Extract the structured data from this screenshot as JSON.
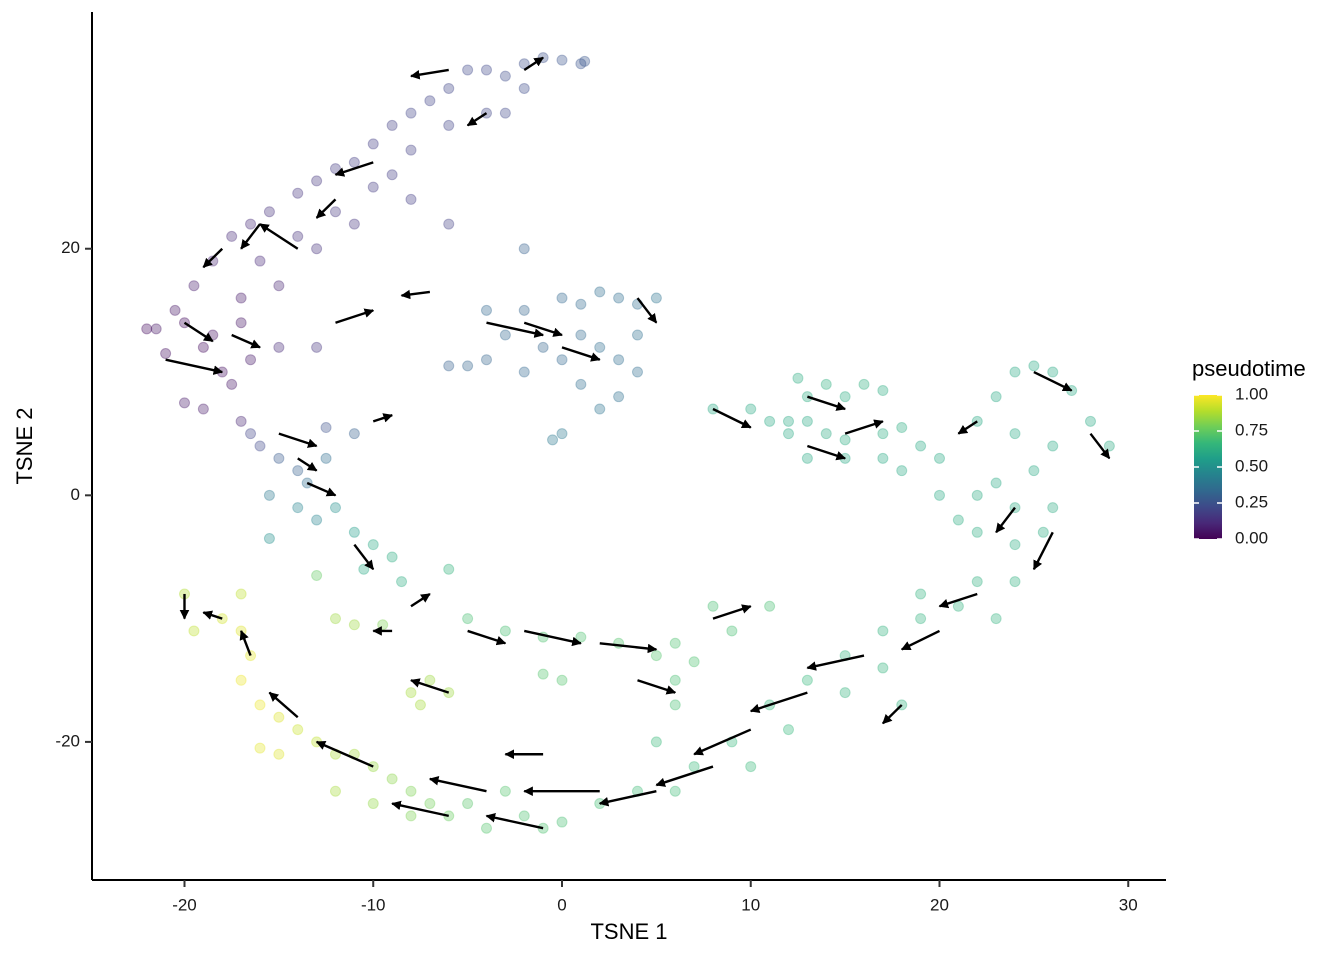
{
  "chart_data": {
    "type": "scatter",
    "xlabel": "TSNE 1",
    "ylabel": "TSNE 2",
    "xlim": [
      -24.9,
      32.0
    ],
    "ylim": [
      -31.2,
      39.2
    ],
    "xticks": [
      -20,
      -10,
      0,
      10,
      20,
      30
    ],
    "yticks": [
      -20,
      0,
      20
    ],
    "points": {
      "x": [
        -21.5,
        -20.5,
        -19.5,
        -18.5,
        -17.5,
        -16.5,
        -15.5,
        -14,
        -13,
        -12,
        -11,
        -10,
        -9,
        -8,
        -7,
        -6,
        -5,
        -4,
        -3,
        -2,
        -1,
        0,
        1,
        1.2,
        -6,
        -8,
        -10,
        -12,
        -14,
        -16,
        -15,
        -13,
        -11,
        -9,
        -4,
        -3,
        -2,
        -8,
        -6,
        -22,
        -21,
        -20,
        -19,
        -18,
        -17.5,
        -18.5,
        -17,
        -16.5,
        -19,
        -20,
        -17,
        -15,
        -13,
        -17,
        -16.5,
        -16,
        -15,
        -14,
        -13.5,
        -15.5,
        -14,
        -13,
        -12,
        -11,
        -10,
        -9,
        -8.5,
        -10.5,
        -15.5,
        -12.5,
        -11,
        -12.5,
        -2,
        0,
        1,
        2,
        3,
        4,
        5,
        1,
        2,
        3,
        4,
        0,
        -1,
        -3,
        -4,
        -2,
        1,
        3,
        2,
        0,
        -0.5,
        -2,
        -6,
        -5,
        4,
        -4,
        8,
        10,
        11,
        12.5,
        13,
        14,
        15,
        16,
        17,
        13,
        14,
        15,
        17,
        18,
        12,
        13,
        15,
        17,
        12,
        24,
        25,
        26,
        27,
        28,
        29,
        23,
        22,
        24,
        26,
        25,
        23,
        22,
        24,
        26,
        25.5,
        24,
        22,
        21,
        20,
        19,
        20,
        18,
        24,
        22,
        21,
        23,
        19,
        17,
        19,
        15,
        17,
        13,
        15,
        11,
        12,
        9,
        10,
        7,
        6,
        4,
        2,
        0,
        -1,
        -2,
        -4,
        -5,
        -3,
        18,
        5,
        -6,
        -7,
        -8,
        -9,
        -10,
        -11,
        -12,
        -13,
        -14,
        -15,
        -16,
        -17,
        -16.5,
        -17,
        -18,
        -17,
        -20,
        -19.5,
        -15,
        -16,
        -12,
        -10,
        -8,
        -6,
        -5,
        -3,
        -1,
        1,
        3,
        5,
        6,
        7,
        9,
        11,
        8,
        6,
        6,
        -1,
        0,
        -7,
        -7.5,
        -8,
        -6,
        -11,
        -12,
        -9.5,
        -13
      ],
      "y": [
        13.5,
        15,
        17,
        19,
        21,
        22,
        23,
        24.5,
        25.5,
        26.5,
        27,
        28.5,
        30,
        31,
        32,
        33,
        34.5,
        34.5,
        34,
        35,
        35.5,
        35.3,
        35,
        35.2,
        30,
        28,
        25,
        23,
        21,
        19,
        17,
        20,
        22,
        26,
        31,
        31,
        33,
        24,
        22,
        13.5,
        11.5,
        14,
        12,
        10,
        9,
        13,
        14,
        11,
        7,
        7.5,
        16,
        12,
        12,
        6,
        5,
        4,
        3,
        2,
        1,
        0,
        -1,
        -2,
        -1,
        -3,
        -4,
        -5,
        -7,
        -6,
        -3.5,
        5.5,
        5,
        3,
        15,
        16,
        15.5,
        16.5,
        16,
        15.5,
        16,
        13,
        12,
        11,
        10,
        11,
        12,
        13,
        11,
        10,
        9,
        8,
        7,
        5,
        4.5,
        20,
        10.5,
        10.5,
        13,
        15,
        7,
        7,
        6,
        9.5,
        8,
        9,
        8,
        9,
        8.5,
        6,
        5,
        4.5,
        5,
        5.5,
        6,
        3,
        3,
        3,
        5,
        10,
        10.5,
        10,
        8.5,
        6,
        4,
        8,
        6,
        5,
        4,
        2,
        1,
        0,
        -1,
        -1,
        -3,
        -4,
        -3,
        -2,
        0,
        4,
        3,
        2,
        -7,
        -7,
        -9,
        -10,
        -10,
        -11,
        -8,
        -13,
        -14,
        -15,
        -16,
        -17,
        -19,
        -20,
        -22,
        -22,
        -24,
        -24,
        -25,
        -26.5,
        -27,
        -26,
        -27,
        -25,
        -24,
        -17,
        -20,
        -26,
        -25,
        -24,
        -23,
        -22,
        -21,
        -21,
        -20,
        -19,
        -18,
        -17,
        -15,
        -13,
        -11,
        -10,
        -8,
        -8,
        -11,
        -21,
        -20.5,
        -24,
        -25,
        -26,
        -6,
        -10,
        -11,
        -11.5,
        -11.5,
        -12,
        -13,
        -12,
        -13.5,
        -11,
        -9,
        -9,
        -15,
        -17,
        -14.5,
        -15,
        -15,
        -17,
        -16,
        -16,
        -10.5,
        -10,
        -10.5,
        -6.5
      ],
      "pseudotime": [
        0.05,
        0.05,
        0.08,
        0.1,
        0.12,
        0.12,
        0.14,
        0.15,
        0.16,
        0.17,
        0.18,
        0.18,
        0.19,
        0.2,
        0.2,
        0.21,
        0.22,
        0.22,
        0.23,
        0.24,
        0.25,
        0.26,
        0.26,
        0.27,
        0.2,
        0.19,
        0.17,
        0.16,
        0.14,
        0.11,
        0.1,
        0.14,
        0.15,
        0.18,
        0.21,
        0.22,
        0.23,
        0.18,
        0.19,
        0.03,
        0.04,
        0.03,
        0.03,
        0.04,
        0.05,
        0.04,
        0.05,
        0.06,
        0.07,
        0.07,
        0.06,
        0.12,
        0.15,
        0.1,
        0.2,
        0.22,
        0.28,
        0.3,
        0.35,
        0.4,
        0.45,
        0.45,
        0.5,
        0.55,
        0.6,
        0.62,
        0.62,
        0.6,
        0.5,
        0.25,
        0.3,
        0.35,
        0.32,
        0.33,
        0.34,
        0.35,
        0.36,
        0.35,
        0.38,
        0.34,
        0.35,
        0.36,
        0.35,
        0.33,
        0.32,
        0.33,
        0.32,
        0.33,
        0.35,
        0.37,
        0.38,
        0.4,
        0.4,
        0.3,
        0.3,
        0.32,
        0.37,
        0.33,
        0.6,
        0.6,
        0.6,
        0.62,
        0.62,
        0.63,
        0.62,
        0.63,
        0.62,
        0.6,
        0.61,
        0.62,
        0.62,
        0.62,
        0.6,
        0.6,
        0.6,
        0.6,
        0.6,
        0.6,
        0.6,
        0.6,
        0.6,
        0.6,
        0.61,
        0.6,
        0.6,
        0.6,
        0.6,
        0.6,
        0.6,
        0.61,
        0.61,
        0.61,
        0.62,
        0.62,
        0.62,
        0.62,
        0.6,
        0.6,
        0.6,
        0.6,
        0.63,
        0.63,
        0.64,
        0.64,
        0.64,
        0.64,
        0.64,
        0.65,
        0.65,
        0.66,
        0.65,
        0.66,
        0.66,
        0.66,
        0.67,
        0.67,
        0.68,
        0.68,
        0.69,
        0.7,
        0.71,
        0.71,
        0.72,
        0.73,
        0.72,
        0.64,
        0.67,
        0.76,
        0.78,
        0.8,
        0.82,
        0.84,
        0.86,
        0.87,
        0.9,
        0.92,
        0.95,
        0.97,
        0.97,
        0.96,
        0.95,
        0.93,
        0.9,
        0.88,
        0.9,
        0.95,
        0.96,
        0.86,
        0.83,
        0.8,
        0.65,
        0.7,
        0.7,
        0.71,
        0.71,
        0.72,
        0.72,
        0.71,
        0.71,
        0.7,
        0.7,
        0.7,
        0.7,
        0.7,
        0.72,
        0.72,
        0.85,
        0.86,
        0.86,
        0.85,
        0.85,
        0.85,
        0.8,
        0.75
      ]
    },
    "arrows": {
      "x": [
        -6,
        -2,
        -4,
        -10,
        -12,
        -16,
        -18,
        -14,
        -20,
        -21,
        -17.5,
        -12,
        -7,
        -10,
        -15,
        -14,
        -13.5,
        -11,
        -8,
        -9,
        -5,
        -2,
        2,
        4,
        8,
        -2,
        0,
        4,
        -4,
        8,
        13,
        15,
        13,
        25,
        28,
        22,
        24,
        26,
        22,
        20,
        16,
        13,
        10,
        8,
        5,
        2,
        -1,
        -4,
        -10,
        -14,
        -16.5,
        -18,
        -20,
        -6,
        -6,
        18,
        -1
      ],
      "y": [
        34.5,
        34.5,
        31,
        27,
        24,
        22,
        20,
        20,
        14,
        11,
        13,
        14,
        16.5,
        6,
        5,
        3,
        1,
        -4,
        -9,
        -11,
        -11,
        -11,
        -12,
        -15,
        -10,
        14,
        12,
        16,
        14,
        7,
        4,
        5,
        8,
        10,
        5,
        6,
        -1,
        -3,
        -8,
        -11,
        -13,
        -16,
        -19,
        -22,
        -24,
        -24,
        -27,
        -24,
        -22,
        -18,
        -13,
        -10,
        -8,
        -26,
        -16,
        -17,
        -21
      ],
      "xend": [
        -8,
        -1,
        -5,
        -12,
        -13,
        -17,
        -19,
        -16,
        -18.5,
        -18,
        -16,
        -10,
        -8.5,
        -9,
        -13,
        -13,
        -12,
        -10,
        -7,
        -10,
        -3,
        1,
        5,
        6,
        10,
        0,
        2,
        5,
        -1,
        10,
        15,
        17,
        15,
        27,
        29,
        21,
        23,
        25,
        20,
        18,
        13,
        10,
        7,
        5,
        2,
        -2,
        -4,
        -7,
        -13,
        -15.5,
        -17,
        -19,
        -20,
        -9,
        -8,
        17,
        -3
      ],
      "yend": [
        34,
        35.5,
        30,
        26,
        22.5,
        20,
        18.5,
        22,
        12.5,
        10,
        12,
        15,
        16.2,
        6.5,
        4,
        2,
        0,
        -6,
        -8,
        -11,
        -12,
        -12,
        -12.5,
        -16,
        -9,
        13,
        11,
        14,
        13,
        5.5,
        3,
        6,
        7,
        8.5,
        3,
        5,
        -3,
        -6,
        -9,
        -12.5,
        -14,
        -17.5,
        -21,
        -23.5,
        -25,
        -24,
        -26,
        -23,
        -20,
        -16,
        -11,
        -9.5,
        -10,
        -25,
        -15,
        -18.5,
        -21
      ]
    },
    "colorbar": {
      "title": "pseudotime",
      "lim": [
        0,
        1
      ],
      "ticks": [
        {
          "value": 1,
          "label": "1.00"
        },
        {
          "value": 0.75,
          "label": "0.75"
        },
        {
          "value": 0.5,
          "label": "0.50"
        },
        {
          "value": 0.25,
          "label": "0.25"
        },
        {
          "value": 0,
          "label": "0.00"
        }
      ],
      "colors": [
        "#440154",
        "#482878",
        "#3e4989",
        "#31688e",
        "#26828e",
        "#1f9e89",
        "#35b779",
        "#6ece58",
        "#b5de2b",
        "#fde725"
      ]
    }
  }
}
